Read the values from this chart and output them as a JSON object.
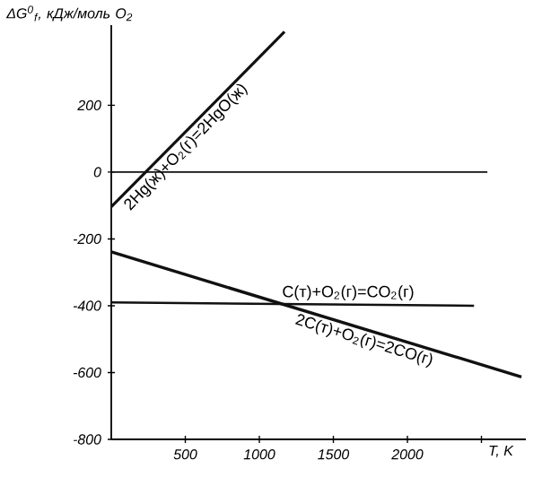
{
  "chart_data": {
    "type": "line",
    "xlabel": "T, K",
    "ylabel": "ΔG$^{0}$$_{f}$, кДж/моль O$_{2}$",
    "xlim": [
      0,
      2800
    ],
    "ylim": [
      -800,
      440
    ],
    "xticks": [
      500,
      1000,
      1500,
      2000,
      {
        "value": 2500,
        "label": null
      }
    ],
    "yticks": [
      -800,
      -600,
      -400,
      -200,
      0,
      200
    ],
    "grid": false,
    "marker": "none",
    "line_style": "solid",
    "series": [
      {
        "color": "#111111",
        "x": [
          0,
          1170
        ],
        "values": [
          -104,
          420
        ]
      },
      {
        "color": "#111111",
        "x": [
          0,
          2540
        ],
        "values": [
          0,
          0
        ]
      },
      {
        "color": "#111111",
        "x": [
          0,
          2450
        ],
        "values": [
          -390,
          -400
        ]
      },
      {
        "color": "#111111",
        "x": [
          0,
          2770
        ],
        "values": [
          -239,
          -613
        ]
      }
    ],
    "annotations": [
      {
        "text": "2Hg(ж)+O$_{2}$(г)=2HgO(ж)",
        "x": 450,
        "y": 98
      },
      {
        "text": "C(т)+O$_{2}$(г)=CO$_{2}$(г)",
        "x": 1600,
        "y": -396
      },
      {
        "text": "2C(т)+O$_{2}$(г)=2CO(г)",
        "x": 1730,
        "y": -472
      }
    ]
  }
}
